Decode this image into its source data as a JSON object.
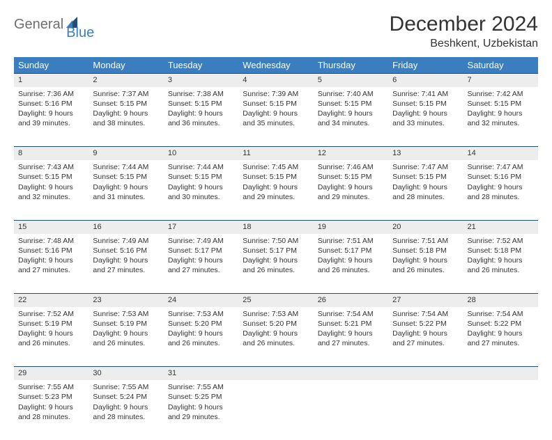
{
  "brand": {
    "text1": "General",
    "text2": "Blue",
    "color1": "#6f6f6f",
    "color2": "#3b7ec0"
  },
  "title": "December 2024",
  "location": "Beshkent, Uzbekistan",
  "colors": {
    "header_bg": "#3b7ec0",
    "header_fg": "#ffffff",
    "row_border": "#1f4e79",
    "daynum_bg": "#ededed",
    "page_bg": "#ffffff",
    "text": "#333333"
  },
  "day_headers": [
    "Sunday",
    "Monday",
    "Tuesday",
    "Wednesday",
    "Thursday",
    "Friday",
    "Saturday"
  ],
  "weeks": [
    [
      {
        "n": "1",
        "sr": "Sunrise: 7:36 AM",
        "ss": "Sunset: 5:16 PM",
        "d1": "Daylight: 9 hours",
        "d2": "and 39 minutes."
      },
      {
        "n": "2",
        "sr": "Sunrise: 7:37 AM",
        "ss": "Sunset: 5:15 PM",
        "d1": "Daylight: 9 hours",
        "d2": "and 38 minutes."
      },
      {
        "n": "3",
        "sr": "Sunrise: 7:38 AM",
        "ss": "Sunset: 5:15 PM",
        "d1": "Daylight: 9 hours",
        "d2": "and 36 minutes."
      },
      {
        "n": "4",
        "sr": "Sunrise: 7:39 AM",
        "ss": "Sunset: 5:15 PM",
        "d1": "Daylight: 9 hours",
        "d2": "and 35 minutes."
      },
      {
        "n": "5",
        "sr": "Sunrise: 7:40 AM",
        "ss": "Sunset: 5:15 PM",
        "d1": "Daylight: 9 hours",
        "d2": "and 34 minutes."
      },
      {
        "n": "6",
        "sr": "Sunrise: 7:41 AM",
        "ss": "Sunset: 5:15 PM",
        "d1": "Daylight: 9 hours",
        "d2": "and 33 minutes."
      },
      {
        "n": "7",
        "sr": "Sunrise: 7:42 AM",
        "ss": "Sunset: 5:15 PM",
        "d1": "Daylight: 9 hours",
        "d2": "and 32 minutes."
      }
    ],
    [
      {
        "n": "8",
        "sr": "Sunrise: 7:43 AM",
        "ss": "Sunset: 5:15 PM",
        "d1": "Daylight: 9 hours",
        "d2": "and 32 minutes."
      },
      {
        "n": "9",
        "sr": "Sunrise: 7:44 AM",
        "ss": "Sunset: 5:15 PM",
        "d1": "Daylight: 9 hours",
        "d2": "and 31 minutes."
      },
      {
        "n": "10",
        "sr": "Sunrise: 7:44 AM",
        "ss": "Sunset: 5:15 PM",
        "d1": "Daylight: 9 hours",
        "d2": "and 30 minutes."
      },
      {
        "n": "11",
        "sr": "Sunrise: 7:45 AM",
        "ss": "Sunset: 5:15 PM",
        "d1": "Daylight: 9 hours",
        "d2": "and 29 minutes."
      },
      {
        "n": "12",
        "sr": "Sunrise: 7:46 AM",
        "ss": "Sunset: 5:15 PM",
        "d1": "Daylight: 9 hours",
        "d2": "and 29 minutes."
      },
      {
        "n": "13",
        "sr": "Sunrise: 7:47 AM",
        "ss": "Sunset: 5:15 PM",
        "d1": "Daylight: 9 hours",
        "d2": "and 28 minutes."
      },
      {
        "n": "14",
        "sr": "Sunrise: 7:47 AM",
        "ss": "Sunset: 5:16 PM",
        "d1": "Daylight: 9 hours",
        "d2": "and 28 minutes."
      }
    ],
    [
      {
        "n": "15",
        "sr": "Sunrise: 7:48 AM",
        "ss": "Sunset: 5:16 PM",
        "d1": "Daylight: 9 hours",
        "d2": "and 27 minutes."
      },
      {
        "n": "16",
        "sr": "Sunrise: 7:49 AM",
        "ss": "Sunset: 5:16 PM",
        "d1": "Daylight: 9 hours",
        "d2": "and 27 minutes."
      },
      {
        "n": "17",
        "sr": "Sunrise: 7:49 AM",
        "ss": "Sunset: 5:17 PM",
        "d1": "Daylight: 9 hours",
        "d2": "and 27 minutes."
      },
      {
        "n": "18",
        "sr": "Sunrise: 7:50 AM",
        "ss": "Sunset: 5:17 PM",
        "d1": "Daylight: 9 hours",
        "d2": "and 26 minutes."
      },
      {
        "n": "19",
        "sr": "Sunrise: 7:51 AM",
        "ss": "Sunset: 5:17 PM",
        "d1": "Daylight: 9 hours",
        "d2": "and 26 minutes."
      },
      {
        "n": "20",
        "sr": "Sunrise: 7:51 AM",
        "ss": "Sunset: 5:18 PM",
        "d1": "Daylight: 9 hours",
        "d2": "and 26 minutes."
      },
      {
        "n": "21",
        "sr": "Sunrise: 7:52 AM",
        "ss": "Sunset: 5:18 PM",
        "d1": "Daylight: 9 hours",
        "d2": "and 26 minutes."
      }
    ],
    [
      {
        "n": "22",
        "sr": "Sunrise: 7:52 AM",
        "ss": "Sunset: 5:19 PM",
        "d1": "Daylight: 9 hours",
        "d2": "and 26 minutes."
      },
      {
        "n": "23",
        "sr": "Sunrise: 7:53 AM",
        "ss": "Sunset: 5:19 PM",
        "d1": "Daylight: 9 hours",
        "d2": "and 26 minutes."
      },
      {
        "n": "24",
        "sr": "Sunrise: 7:53 AM",
        "ss": "Sunset: 5:20 PM",
        "d1": "Daylight: 9 hours",
        "d2": "and 26 minutes."
      },
      {
        "n": "25",
        "sr": "Sunrise: 7:53 AM",
        "ss": "Sunset: 5:20 PM",
        "d1": "Daylight: 9 hours",
        "d2": "and 26 minutes."
      },
      {
        "n": "26",
        "sr": "Sunrise: 7:54 AM",
        "ss": "Sunset: 5:21 PM",
        "d1": "Daylight: 9 hours",
        "d2": "and 27 minutes."
      },
      {
        "n": "27",
        "sr": "Sunrise: 7:54 AM",
        "ss": "Sunset: 5:22 PM",
        "d1": "Daylight: 9 hours",
        "d2": "and 27 minutes."
      },
      {
        "n": "28",
        "sr": "Sunrise: 7:54 AM",
        "ss": "Sunset: 5:22 PM",
        "d1": "Daylight: 9 hours",
        "d2": "and 27 minutes."
      }
    ],
    [
      {
        "n": "29",
        "sr": "Sunrise: 7:55 AM",
        "ss": "Sunset: 5:23 PM",
        "d1": "Daylight: 9 hours",
        "d2": "and 28 minutes."
      },
      {
        "n": "30",
        "sr": "Sunrise: 7:55 AM",
        "ss": "Sunset: 5:24 PM",
        "d1": "Daylight: 9 hours",
        "d2": "and 28 minutes."
      },
      {
        "n": "31",
        "sr": "Sunrise: 7:55 AM",
        "ss": "Sunset: 5:25 PM",
        "d1": "Daylight: 9 hours",
        "d2": "and 29 minutes."
      },
      null,
      null,
      null,
      null
    ]
  ]
}
